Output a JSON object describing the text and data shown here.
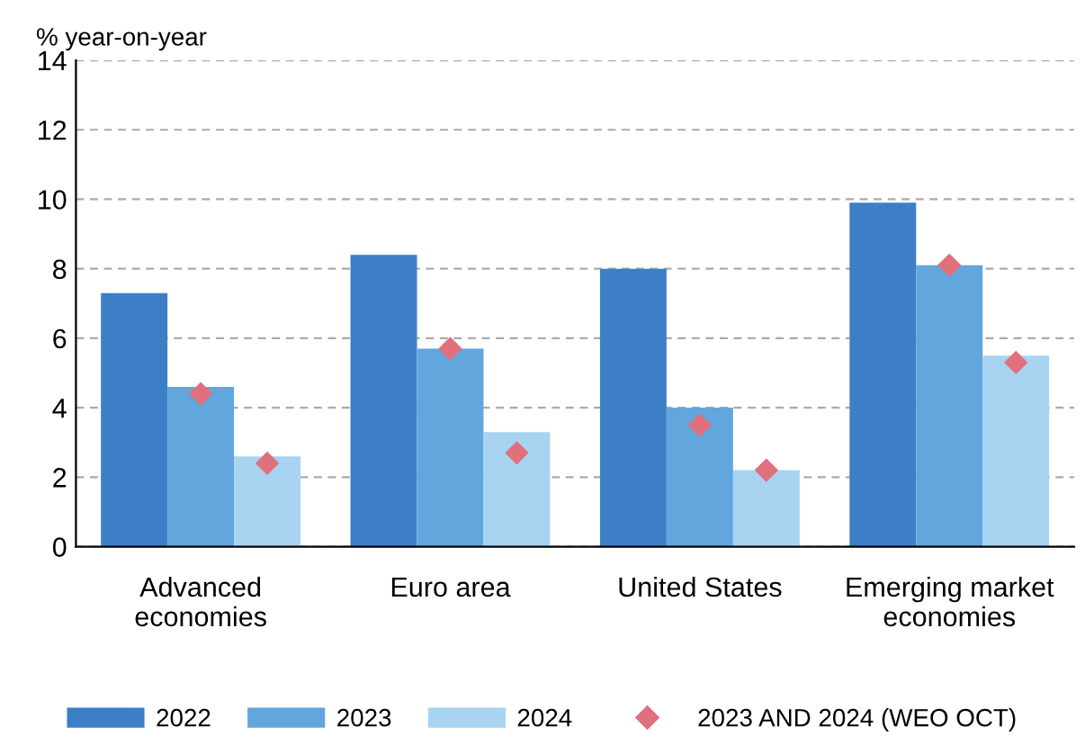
{
  "chart_data": {
    "type": "bar",
    "ylabel": "% year-on-year",
    "categories": [
      "Advanced\neconomies",
      "Euro area",
      "United States",
      "Emerging market\neconomies"
    ],
    "series": [
      {
        "name": "2022",
        "color": "#3d7fc7",
        "values": [
          7.3,
          8.4,
          8.0,
          9.9
        ]
      },
      {
        "name": "2023",
        "color": "#62a6de",
        "values": [
          4.6,
          5.7,
          4.0,
          8.1
        ]
      },
      {
        "name": "2024",
        "color": "#a8d4f2",
        "values": [
          2.6,
          3.3,
          2.2,
          5.5
        ]
      },
      {
        "type": "scatter",
        "name": "2023 AND 2024 (WEO OCT)",
        "color": "#e0707c",
        "marker": "diamond",
        "values": [
          4.4,
          5.7,
          3.5,
          8.1
        ]
      },
      {
        "type": "scatter",
        "color": "#e0707c",
        "marker": "diamond",
        "values": [
          2.4,
          2.7,
          2.2,
          5.3
        ]
      }
    ],
    "ylim": [
      0,
      14
    ],
    "yticks": [
      0,
      2,
      4,
      6,
      8,
      10,
      12,
      14
    ],
    "grid": "y",
    "legend": "bottom"
  }
}
